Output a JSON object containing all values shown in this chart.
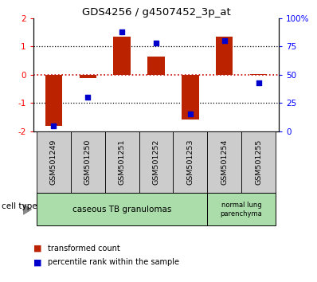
{
  "title": "GDS4256 / g4507452_3p_at",
  "samples": [
    "GSM501249",
    "GSM501250",
    "GSM501251",
    "GSM501252",
    "GSM501253",
    "GSM501254",
    "GSM501255"
  ],
  "transformed_counts": [
    -1.8,
    -0.12,
    1.35,
    0.65,
    -1.58,
    1.35,
    0.02
  ],
  "percentile_ranks": [
    5,
    30,
    88,
    78,
    15,
    80,
    43
  ],
  "ylim_left": [
    -2,
    2
  ],
  "ylim_right": [
    0,
    100
  ],
  "yticks_left": [
    -2,
    -1,
    0,
    1,
    2
  ],
  "yticks_right": [
    0,
    25,
    50,
    75,
    100
  ],
  "ytick_labels_right": [
    "0",
    "25",
    "50",
    "75",
    "100%"
  ],
  "bar_color": "#BB2200",
  "dot_color": "#0000CC",
  "zero_line_color": "#CC0000",
  "hline_color": "#000000",
  "cell_type_label": "cell type",
  "group1_label": "caseous TB granulomas",
  "group2_label": "normal lung\nparenchyma",
  "legend_bar_label": "transformed count",
  "legend_dot_label": "percentile rank within the sample",
  "bar_width": 0.5,
  "background_color": "#FFFFFF",
  "plot_bg_color": "#FFFFFF",
  "tick_label_area_bg": "#CCCCCC",
  "cell_type_area_bg": "#AADDAA"
}
